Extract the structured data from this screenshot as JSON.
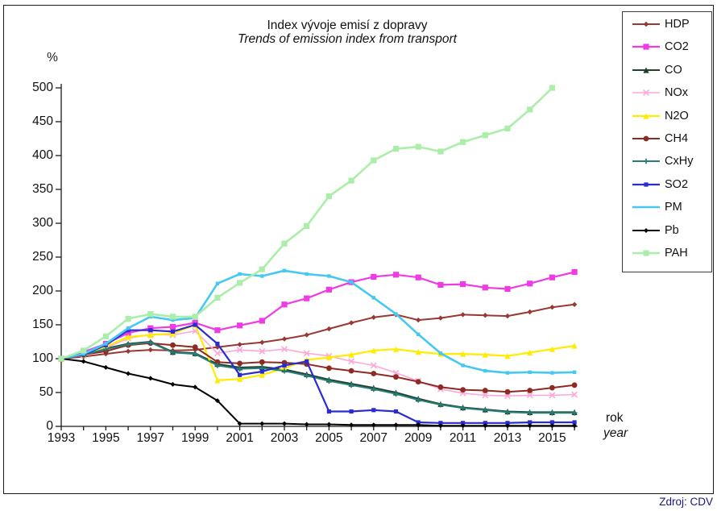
{
  "title": {
    "line1": "Index vývoje emisí z dopravy",
    "line2": "Trends of emission index from transport"
  },
  "axes": {
    "y_label": "%",
    "x_label_cs": "rok",
    "x_label_en": "year",
    "y_ticks": [
      0,
      50,
      100,
      150,
      200,
      250,
      300,
      350,
      400,
      450,
      500
    ],
    "x_tick_years": [
      1993,
      1995,
      1997,
      1999,
      2001,
      2003,
      2005,
      2007,
      2009,
      2011,
      2013,
      2015
    ]
  },
  "source": "Zdroj: CDV",
  "chart_data": {
    "type": "line",
    "title": "Index vývoje emisí z dopravy",
    "subtitle": "Trends of emission index from transport",
    "xlabel": "rok / year",
    "ylabel": "%",
    "ylim": [
      0,
      500
    ],
    "grid": false,
    "legend_position": "top-right",
    "x": [
      1993,
      1994,
      1995,
      1996,
      1997,
      1998,
      1999,
      2000,
      2001,
      2002,
      2003,
      2004,
      2005,
      2006,
      2007,
      2008,
      2009,
      2010,
      2011,
      2012,
      2013,
      2014,
      2015,
      2016
    ],
    "series": [
      {
        "name": "HDP",
        "color": "#993832",
        "marker": "diamond",
        "msize": 3.2,
        "width": 2,
        "values": [
          100,
          103,
          107,
          111,
          113,
          112,
          113,
          117,
          121,
          124,
          129,
          135,
          144,
          153,
          161,
          165,
          157,
          160,
          165,
          164,
          163,
          169,
          176,
          180
        ]
      },
      {
        "name": "CO2",
        "color": "#ee3be4",
        "marker": "square",
        "msize": 3.6,
        "width": 2.2,
        "values": [
          100,
          110,
          122,
          138,
          145,
          147,
          153,
          142,
          149,
          156,
          180,
          189,
          202,
          213,
          221,
          224,
          220,
          209,
          210,
          205,
          203,
          211,
          220,
          228
        ]
      },
      {
        "name": "CO",
        "color": "#21402f",
        "marker": "triangle",
        "msize": 3.6,
        "width": 2,
        "values": [
          100,
          107,
          115,
          122,
          125,
          110,
          108,
          92,
          87,
          88,
          84,
          77,
          69,
          63,
          57,
          50,
          41,
          33,
          28,
          25,
          22,
          21,
          21,
          21
        ]
      },
      {
        "name": "NOx",
        "color": "#fca9d9",
        "marker": "x",
        "msize": 3.4,
        "width": 1.6,
        "values": [
          100,
          105,
          116,
          130,
          136,
          135,
          141,
          108,
          113,
          111,
          114,
          108,
          104,
          96,
          90,
          79,
          67,
          55,
          49,
          46,
          45,
          46,
          46,
          47
        ]
      },
      {
        "name": "N2O",
        "color": "#ffec00",
        "marker": "triangle",
        "msize": 3.6,
        "width": 2.2,
        "values": [
          100,
          106,
          118,
          132,
          135,
          137,
          150,
          68,
          70,
          76,
          86,
          98,
          102,
          106,
          112,
          114,
          110,
          107,
          107,
          106,
          104,
          109,
          114,
          119
        ]
      },
      {
        "name": "CH4",
        "color": "#8f2a22",
        "marker": "circle",
        "msize": 3.4,
        "width": 2,
        "values": [
          100,
          106,
          111,
          120,
          123,
          120,
          117,
          95,
          93,
          95,
          94,
          92,
          86,
          82,
          78,
          73,
          66,
          58,
          54,
          53,
          51,
          53,
          57,
          61
        ]
      },
      {
        "name": "CxHy",
        "color": "#257f78",
        "marker": "plus",
        "msize": 3.4,
        "width": 2,
        "values": [
          100,
          106,
          114,
          121,
          124,
          109,
          107,
          90,
          85,
          86,
          82,
          75,
          67,
          61,
          55,
          48,
          39,
          32,
          27,
          24,
          21,
          20,
          20,
          20
        ]
      },
      {
        "name": "SO2",
        "color": "#2b2bd2",
        "marker": "square",
        "msize": 2.6,
        "width": 2.2,
        "values": [
          100,
          106,
          120,
          142,
          142,
          140,
          150,
          122,
          76,
          81,
          90,
          96,
          22,
          22,
          24,
          22,
          6,
          5,
          5,
          5,
          5,
          6,
          6,
          6
        ]
      },
      {
        "name": "PM",
        "color": "#45c8f1",
        "marker": "square",
        "msize": 2.2,
        "width": 2.6,
        "legend_marker": "none",
        "values": [
          100,
          107,
          122,
          145,
          162,
          157,
          160,
          211,
          225,
          222,
          230,
          225,
          222,
          213,
          190,
          166,
          136,
          108,
          90,
          82,
          79,
          80,
          79,
          80
        ]
      },
      {
        "name": "Pb",
        "color": "#000000",
        "marker": "diamond",
        "msize": 3.0,
        "width": 2,
        "values": [
          100,
          96,
          87,
          78,
          71,
          62,
          58,
          38,
          4,
          4,
          4,
          3,
          3,
          2,
          2,
          2,
          2,
          1,
          1,
          1,
          1,
          1,
          1,
          1
        ]
      },
      {
        "name": "PAH",
        "color": "#aaeeaa",
        "marker": "square",
        "msize": 3.6,
        "width": 2.6,
        "values": [
          100,
          112,
          133,
          159,
          166,
          162,
          162,
          190,
          212,
          232,
          270,
          296,
          340,
          363,
          393,
          410,
          413,
          406,
          420,
          430,
          440,
          468,
          500,
          null
        ]
      }
    ]
  }
}
